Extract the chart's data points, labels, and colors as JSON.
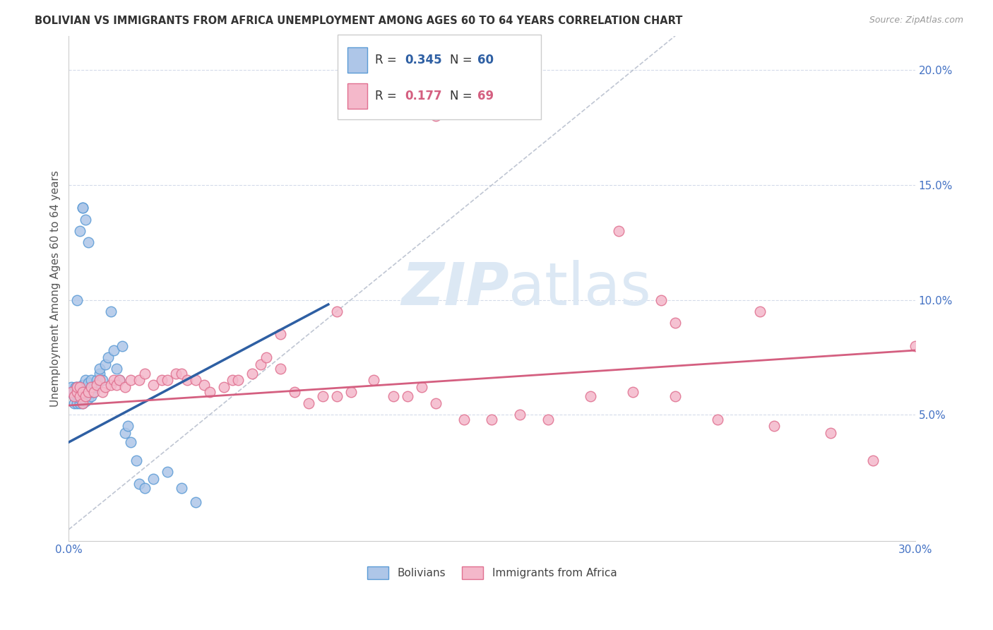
{
  "title": "BOLIVIAN VS IMMIGRANTS FROM AFRICA UNEMPLOYMENT AMONG AGES 60 TO 64 YEARS CORRELATION CHART",
  "source": "Source: ZipAtlas.com",
  "ylabel": "Unemployment Among Ages 60 to 64 years",
  "xmin": 0.0,
  "xmax": 0.3,
  "ymin": -0.005,
  "ymax": 0.215,
  "x_ticks": [
    0.0,
    0.05,
    0.1,
    0.15,
    0.2,
    0.25,
    0.3
  ],
  "x_tick_labels": [
    "0.0%",
    "",
    "",
    "",
    "",
    "",
    "30.0%"
  ],
  "y_ticks_right": [
    0.05,
    0.1,
    0.15,
    0.2
  ],
  "y_tick_labels_right": [
    "5.0%",
    "10.0%",
    "15.0%",
    "20.0%"
  ],
  "title_color": "#333333",
  "source_color": "#999999",
  "axis_color": "#4472c4",
  "blue_scatter_color": "#aec6e8",
  "blue_scatter_edge": "#5b9bd5",
  "pink_scatter_color": "#f4b8ca",
  "pink_scatter_edge": "#e07090",
  "blue_line_color": "#2e5fa3",
  "pink_line_color": "#d45f80",
  "diag_line_color": "#b0b8c8",
  "grid_color": "#d0d8e8",
  "watermark_color": "#dce8f4",
  "background_color": "#ffffff",
  "bolivians_x": [
    0.0005,
    0.001,
    0.001,
    0.0015,
    0.002,
    0.002,
    0.002,
    0.0025,
    0.003,
    0.003,
    0.003,
    0.003,
    0.0035,
    0.004,
    0.004,
    0.004,
    0.004,
    0.0045,
    0.005,
    0.005,
    0.005,
    0.005,
    0.005,
    0.006,
    0.006,
    0.006,
    0.006,
    0.006,
    0.007,
    0.007,
    0.007,
    0.007,
    0.008,
    0.008,
    0.008,
    0.008,
    0.009,
    0.009,
    0.01,
    0.01,
    0.011,
    0.011,
    0.012,
    0.013,
    0.014,
    0.015,
    0.016,
    0.017,
    0.018,
    0.019,
    0.02,
    0.021,
    0.022,
    0.024,
    0.025,
    0.027,
    0.03,
    0.035,
    0.04,
    0.045
  ],
  "bolivians_y": [
    0.06,
    0.06,
    0.062,
    0.06,
    0.055,
    0.058,
    0.06,
    0.062,
    0.055,
    0.058,
    0.06,
    0.062,
    0.058,
    0.055,
    0.057,
    0.06,
    0.062,
    0.06,
    0.055,
    0.058,
    0.06,
    0.062,
    0.063,
    0.056,
    0.058,
    0.06,
    0.062,
    0.065,
    0.057,
    0.06,
    0.062,
    0.064,
    0.058,
    0.06,
    0.062,
    0.065,
    0.06,
    0.062,
    0.063,
    0.065,
    0.068,
    0.07,
    0.065,
    0.072,
    0.075,
    0.095,
    0.078,
    0.07,
    0.065,
    0.08,
    0.042,
    0.045,
    0.038,
    0.03,
    0.02,
    0.018,
    0.022,
    0.025,
    0.018,
    0.012
  ],
  "bolivians_y_extra": [
    0.1,
    0.13,
    0.14,
    0.14,
    0.135,
    0.125
  ],
  "bolivians_x_extra": [
    0.003,
    0.004,
    0.005,
    0.005,
    0.006,
    0.007
  ],
  "africa_x": [
    0.001,
    0.002,
    0.003,
    0.003,
    0.004,
    0.004,
    0.005,
    0.005,
    0.006,
    0.007,
    0.008,
    0.009,
    0.01,
    0.011,
    0.012,
    0.013,
    0.015,
    0.016,
    0.017,
    0.018,
    0.02,
    0.022,
    0.025,
    0.027,
    0.03,
    0.033,
    0.035,
    0.038,
    0.04,
    0.042,
    0.045,
    0.048,
    0.05,
    0.055,
    0.058,
    0.06,
    0.065,
    0.068,
    0.07,
    0.075,
    0.08,
    0.085,
    0.09,
    0.095,
    0.1,
    0.108,
    0.115,
    0.12,
    0.125,
    0.13,
    0.14,
    0.15,
    0.16,
    0.17,
    0.185,
    0.2,
    0.215,
    0.23,
    0.25,
    0.27,
    0.215,
    0.245,
    0.195,
    0.13,
    0.075,
    0.095,
    0.21,
    0.285,
    0.3
  ],
  "africa_y": [
    0.06,
    0.058,
    0.06,
    0.062,
    0.058,
    0.062,
    0.055,
    0.06,
    0.058,
    0.06,
    0.062,
    0.06,
    0.063,
    0.065,
    0.06,
    0.062,
    0.063,
    0.065,
    0.063,
    0.065,
    0.062,
    0.065,
    0.065,
    0.068,
    0.063,
    0.065,
    0.065,
    0.068,
    0.068,
    0.065,
    0.065,
    0.063,
    0.06,
    0.062,
    0.065,
    0.065,
    0.068,
    0.072,
    0.075,
    0.07,
    0.06,
    0.055,
    0.058,
    0.058,
    0.06,
    0.065,
    0.058,
    0.058,
    0.062,
    0.055,
    0.048,
    0.048,
    0.05,
    0.048,
    0.058,
    0.06,
    0.058,
    0.048,
    0.045,
    0.042,
    0.09,
    0.095,
    0.13,
    0.18,
    0.085,
    0.095,
    0.1,
    0.03,
    0.08
  ],
  "blue_line_x": [
    0.0,
    0.092
  ],
  "blue_line_y": [
    0.038,
    0.098
  ],
  "pink_line_x": [
    0.0,
    0.3
  ],
  "pink_line_y": [
    0.054,
    0.078
  ],
  "diag_line_x": [
    0.0,
    0.215
  ],
  "diag_line_y": [
    0.0,
    0.215
  ],
  "legend_blue_r": "0.345",
  "legend_blue_n": "60",
  "legend_pink_r": "0.177",
  "legend_pink_n": "69"
}
